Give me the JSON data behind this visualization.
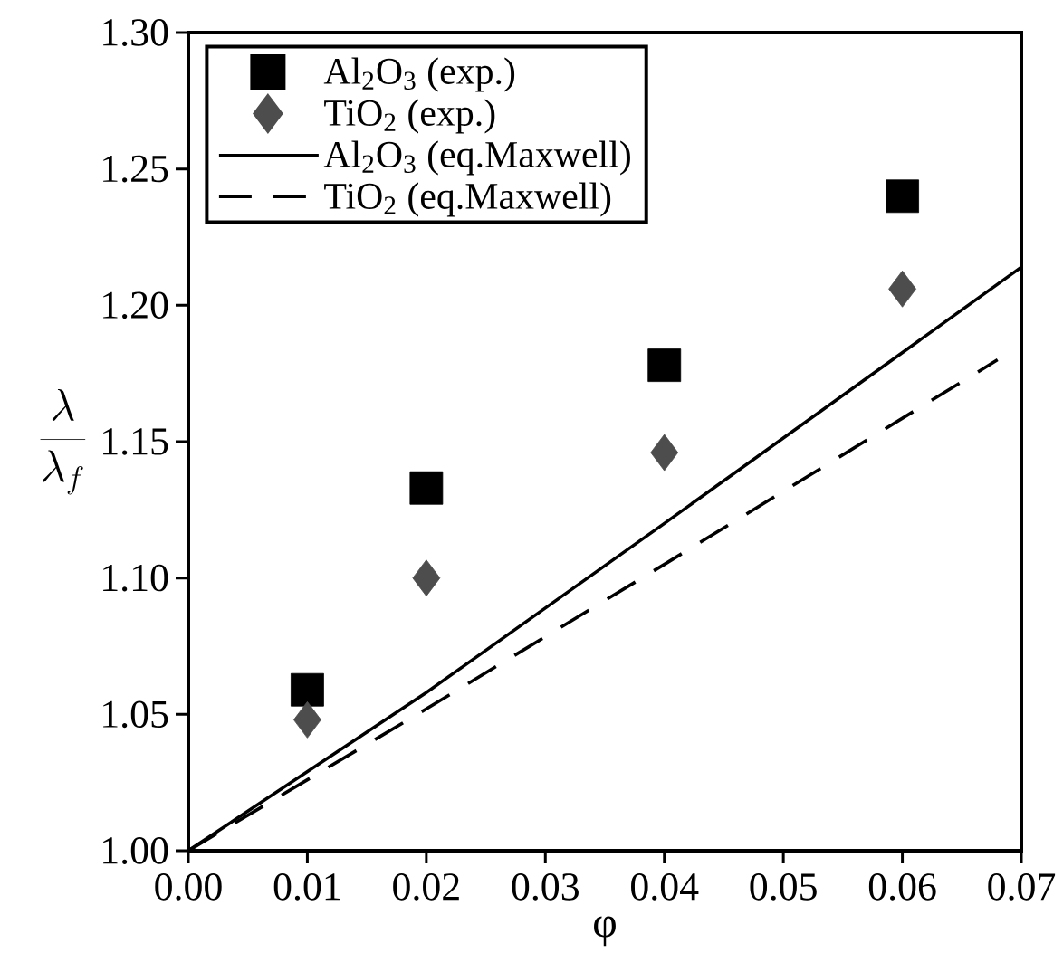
{
  "chart_data": {
    "type": "scatter",
    "xlabel": "φ",
    "ylabel": "\\frac{\\lambda}{\\lambda_f}",
    "xlim": [
      0,
      0.07
    ],
    "ylim": [
      1.0,
      1.3
    ],
    "xticks": [
      {
        "value": 0,
        "label": "0.00"
      },
      {
        "value": 0.01,
        "label": "0.01"
      },
      {
        "value": 0.02,
        "label": "0.02"
      },
      {
        "value": 0.03,
        "label": "0.03"
      },
      {
        "value": 0.04,
        "label": "0.04"
      },
      {
        "value": 0.05,
        "label": "0.05"
      },
      {
        "value": 0.06,
        "label": "0.06"
      },
      {
        "value": 0.07,
        "label": "0.07"
      }
    ],
    "yticks": [
      {
        "value": 1.0,
        "label": "1.00"
      },
      {
        "value": 1.05,
        "label": "1.05"
      },
      {
        "value": 1.1,
        "label": "1.10"
      },
      {
        "value": 1.15,
        "label": "1.15"
      },
      {
        "value": 1.2,
        "label": "1.20"
      },
      {
        "value": 1.25,
        "label": "1.25"
      },
      {
        "value": 1.3,
        "label": "1.30"
      }
    ],
    "legend": "top left",
    "grid": false,
    "series": [
      {
        "name": "Al$_{2}$O$_{3}$ (exp.)",
        "marker": "square",
        "color": "#000000",
        "x": [
          0.01,
          0.02,
          0.04,
          0.06
        ],
        "values": [
          1.059,
          1.133,
          1.178,
          1.24
        ]
      },
      {
        "name": "TiO$_{2}$ (exp.)",
        "marker": "diamond",
        "color": "#4d4d4d",
        "x": [
          0.01,
          0.02,
          0.04,
          0.06
        ],
        "values": [
          1.048,
          1.1,
          1.146,
          1.206
        ]
      },
      {
        "name": "Al$_{2}$O$_{3}$ (eq.Maxwell)",
        "type": "line",
        "line_style": "solid",
        "color": "#000000",
        "x": [
          0,
          0.02,
          0.04,
          0.07
        ],
        "values": [
          1.0,
          1.058,
          1.12,
          1.214
        ]
      },
      {
        "name": "TiO$_{2}$ (eq.Maxwell)",
        "type": "line",
        "line_style": "dashed",
        "color": "#000000",
        "x": [
          0,
          0.02,
          0.04,
          0.068
        ],
        "values": [
          1.0,
          1.052,
          1.105,
          1.18
        ]
      }
    ]
  }
}
